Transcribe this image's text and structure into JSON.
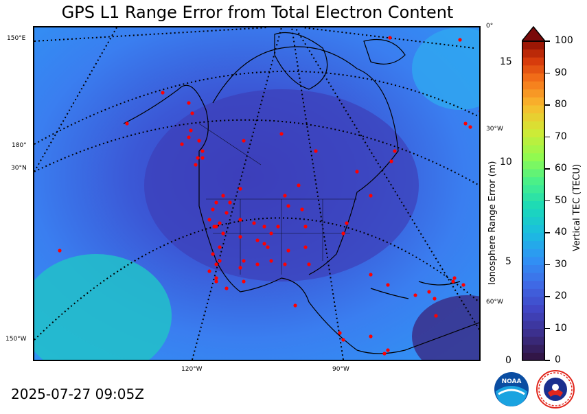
{
  "title": "GPS L1 Range Error from Total Electron Content",
  "timestamp": "2025-07-27 09:05Z",
  "map": {
    "edge_labels": {
      "top_left": "150°E",
      "left_180": "180°",
      "left_30n": "30°N",
      "bottom_left": "150°W",
      "bottom_120": "120°W",
      "bottom_90": "90°W",
      "right_0": "0°",
      "right_30": "30°W",
      "right_60": "60°W"
    },
    "station_color": "#ff0000"
  },
  "range_axis": {
    "label": "Ionosphere Range Error (m)",
    "ticks": [
      "0",
      "5",
      "10",
      "15"
    ]
  },
  "tec_axis": {
    "label": "Vertical TEC (TECU)",
    "ticks": [
      "0",
      "10",
      "20",
      "30",
      "40",
      "50",
      "60",
      "70",
      "80",
      "90",
      "100"
    ],
    "min": 0,
    "max": 100
  },
  "logos": {
    "noaa": "NOAA",
    "nws": "NATIONAL WEATHER SERVICE"
  }
}
